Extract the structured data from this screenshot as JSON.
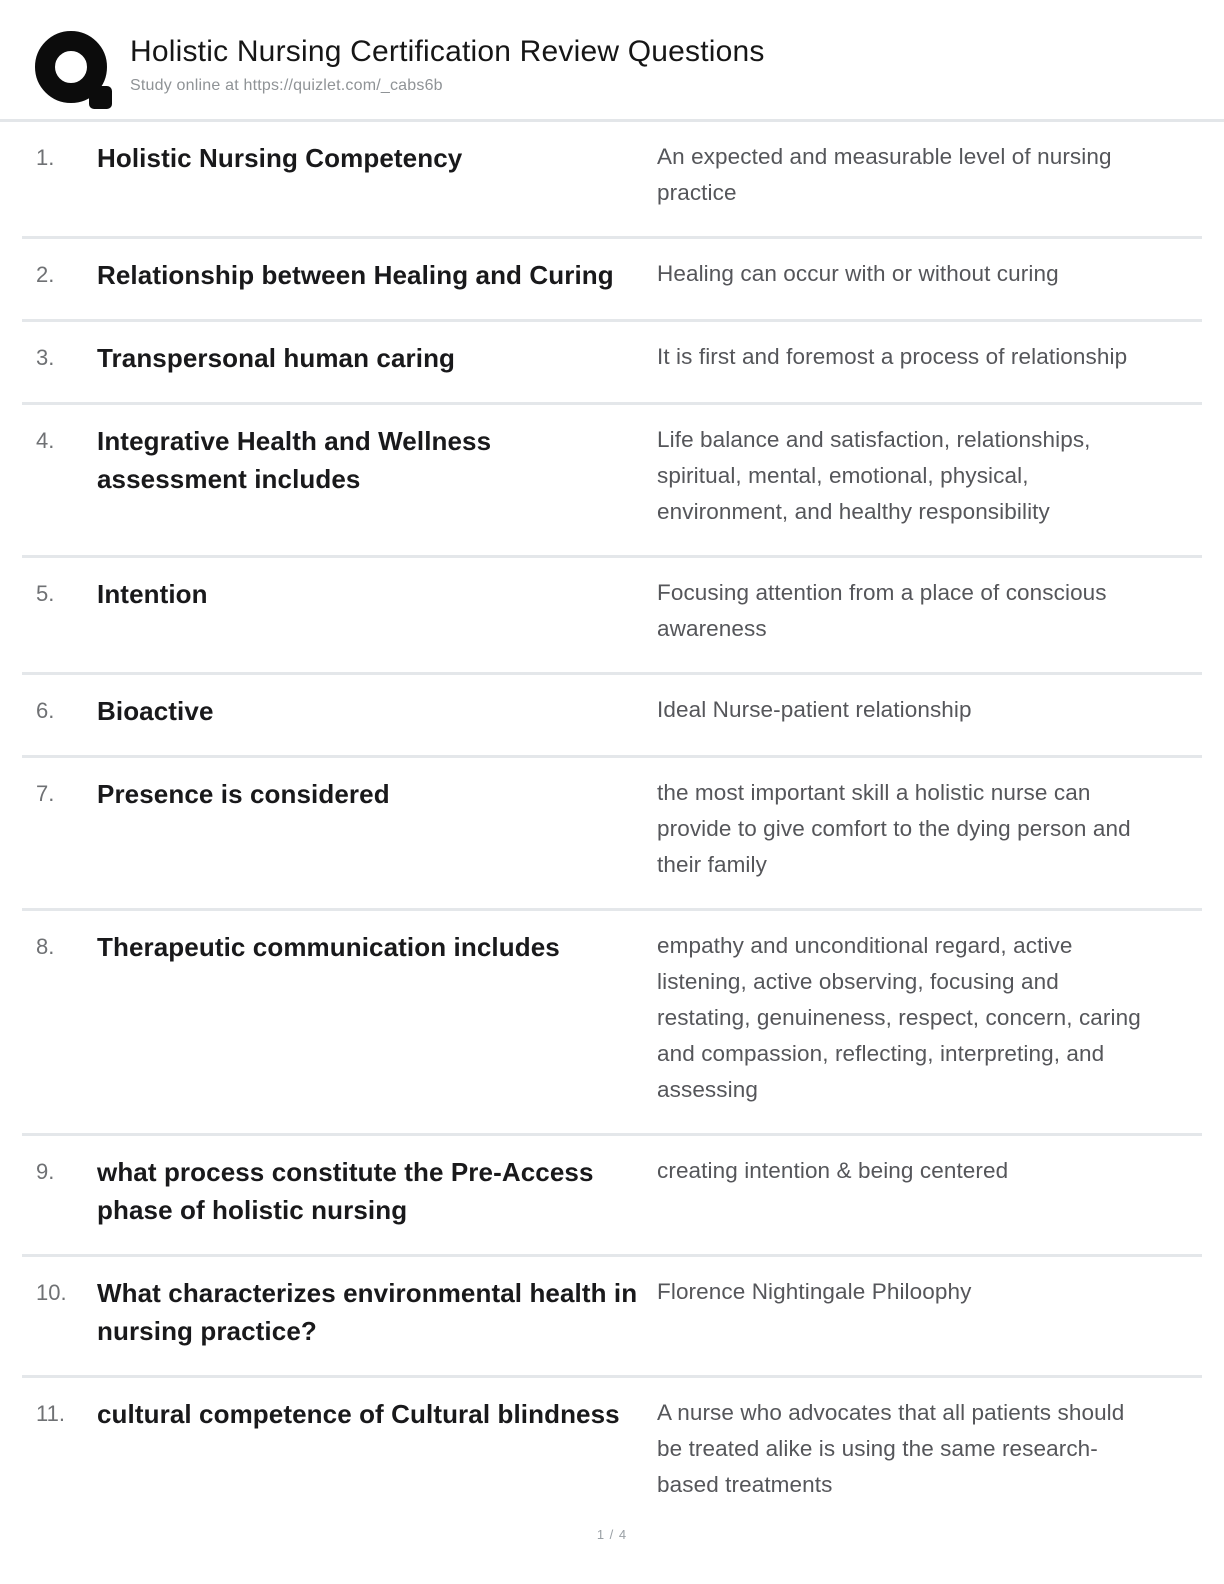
{
  "header": {
    "title": "Holistic Nursing Certification Review Questions",
    "subtitle": "Study online at https://quizlet.com/_cabs6b"
  },
  "rows": [
    {
      "num": "1.",
      "term": "Holistic Nursing Competency",
      "definition": "An expected and measurable level of nursing practice"
    },
    {
      "num": "2.",
      "term": "Relationship between Healing and Curing",
      "definition": "Healing can occur with or without curing"
    },
    {
      "num": "3.",
      "term": "Transpersonal human caring",
      "definition": "It is first and foremost a process of relationship"
    },
    {
      "num": "4.",
      "term": "Integrative Health and Wellness assessment includes",
      "definition": "Life balance and satisfaction, relationships, spiritual, mental, emotional, physical, environment, and healthy responsibility"
    },
    {
      "num": "5.",
      "term": "Intention",
      "definition": "Focusing attention from a place of conscious awareness"
    },
    {
      "num": "6.",
      "term": "Bioactive",
      "definition": "Ideal Nurse-patient relationship"
    },
    {
      "num": "7.",
      "term": "Presence is considered",
      "definition": "the most important skill a holistic nurse can provide to give comfort to the dying person and their family"
    },
    {
      "num": "8.",
      "term": "Therapeutic communication includes",
      "definition": "empathy and unconditional regard, active listening, active observing, focusing and restating, genuineness, respect, concern, caring and compassion, reflecting, interpreting, and assessing"
    },
    {
      "num": "9.",
      "term": "what process constitute the Pre-Access phase of holistic nursing",
      "definition": "creating intention & being centered"
    },
    {
      "num": "10.",
      "term": "What characterizes environmental health in nursing practice?",
      "definition": "Florence Nightingale Philoophy"
    },
    {
      "num": "11.",
      "term": "cultural competence of Cultural blindness",
      "definition": "A nurse who advocates that all patients should be treated alike is using the same research-based treatments"
    }
  ],
  "footer": {
    "page_indicator": "1 / 4"
  }
}
